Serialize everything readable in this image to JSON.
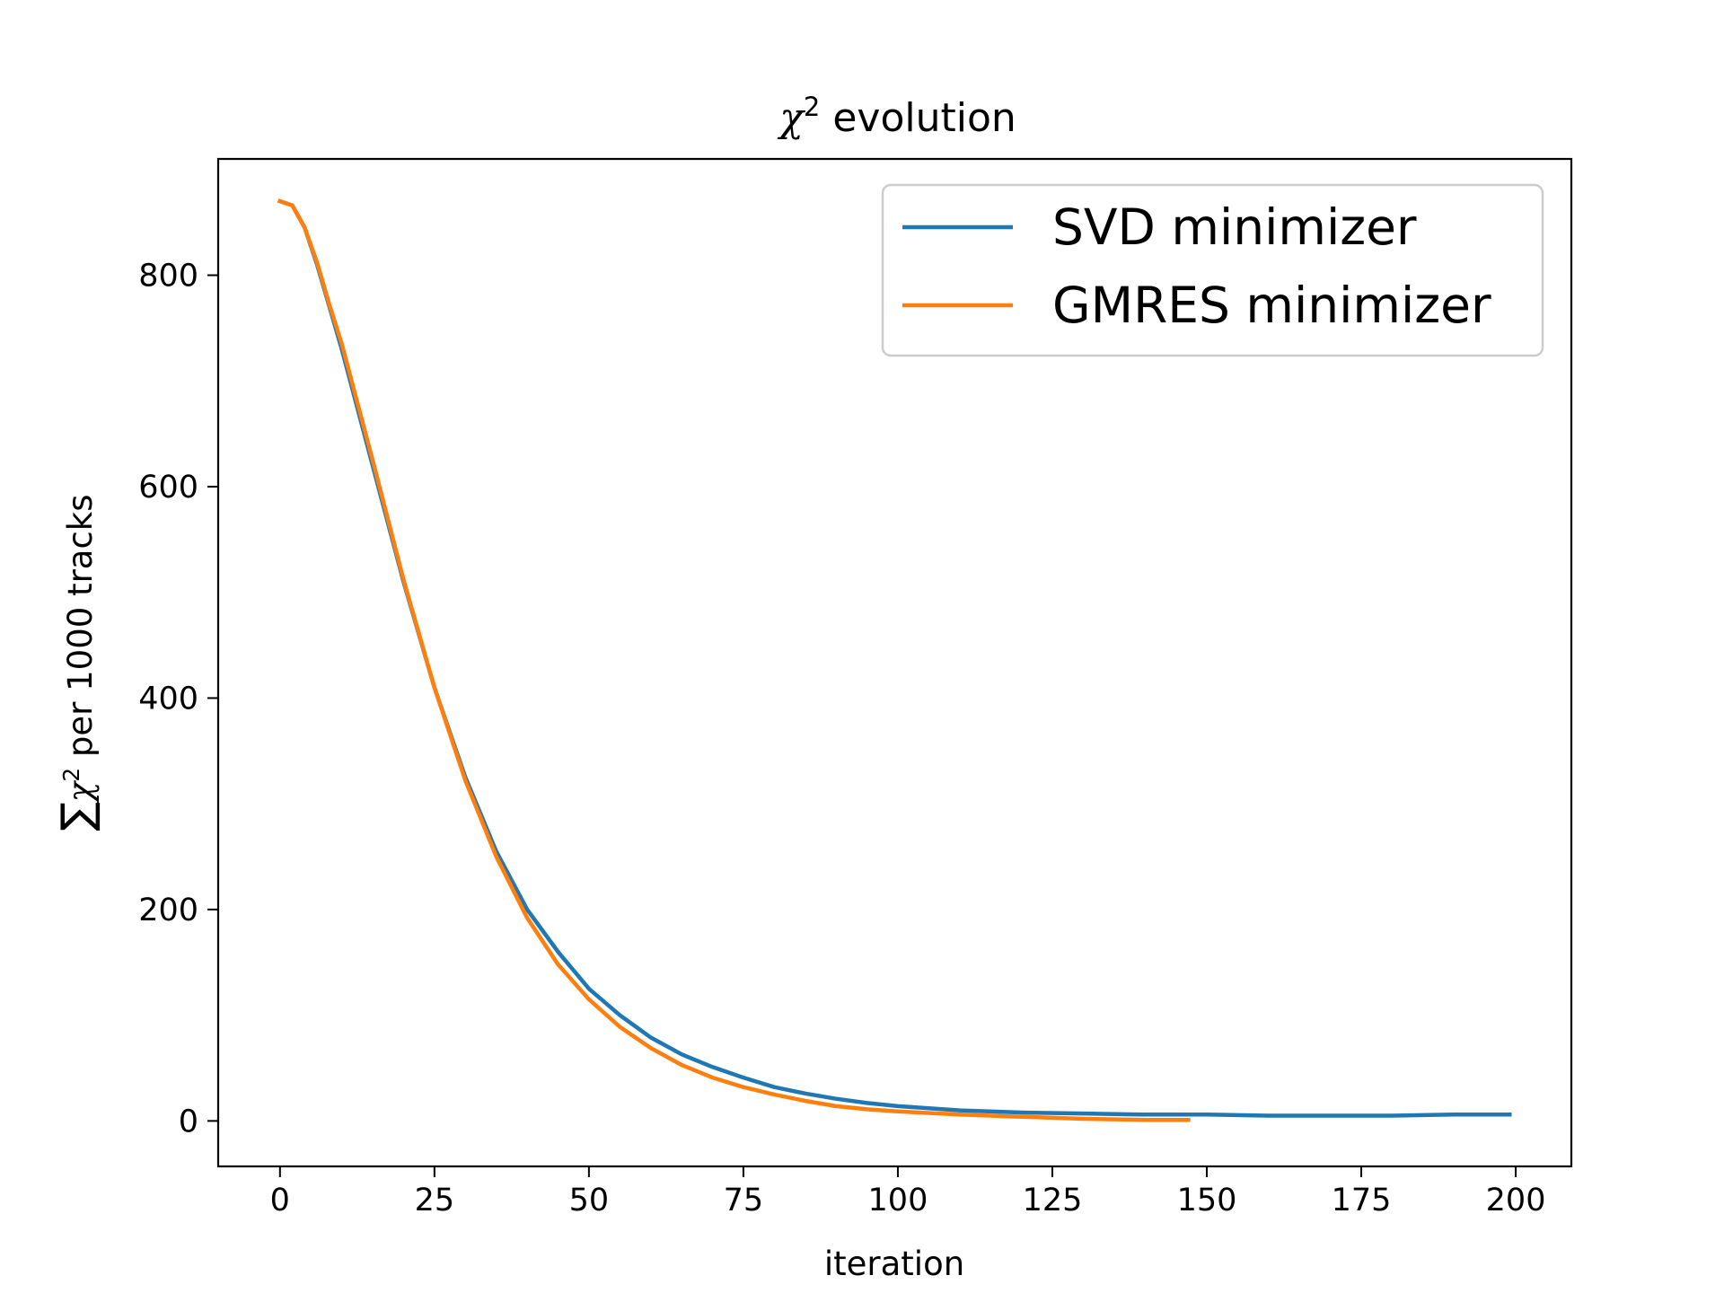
{
  "chart_data": {
    "type": "line",
    "title_prefix": "χ",
    "title_exponent": "2",
    "title_suffix": " evolution",
    "xlabel": "iteration",
    "ylabel_sum": "∑",
    "ylabel_chi": "χ",
    "ylabel_exponent": "2",
    "ylabel_suffix": " per 1000 tracks",
    "xlim": [
      -10,
      209
    ],
    "ylim": [
      -43,
      910
    ],
    "xticks": [
      0,
      25,
      50,
      75,
      100,
      125,
      150,
      175,
      200
    ],
    "yticks": [
      0,
      200,
      400,
      600,
      800
    ],
    "grid": false,
    "legend_position": "top-right",
    "series": [
      {
        "name": "SVD minimizer",
        "color": "#1f77b4",
        "x": [
          0,
          2,
          4,
          6,
          8,
          10,
          15,
          20,
          25,
          30,
          35,
          40,
          45,
          50,
          55,
          60,
          65,
          70,
          75,
          80,
          85,
          90,
          95,
          100,
          110,
          120,
          130,
          140,
          150,
          160,
          170,
          180,
          190,
          199
        ],
        "y": [
          870,
          866,
          845,
          810,
          770,
          730,
          620,
          510,
          410,
          325,
          255,
          200,
          160,
          125,
          100,
          79,
          63,
          51,
          41,
          32,
          26,
          21,
          17,
          14,
          10,
          8,
          7,
          6,
          6,
          5,
          5,
          5,
          6,
          6
        ]
      },
      {
        "name": "GMRES minimizer",
        "color": "#ff7f0e",
        "x": [
          0,
          2,
          4,
          6,
          8,
          10,
          15,
          20,
          25,
          30,
          35,
          40,
          45,
          50,
          55,
          60,
          65,
          70,
          75,
          80,
          85,
          90,
          95,
          100,
          110,
          120,
          130,
          140,
          147
        ],
        "y": [
          870,
          866,
          845,
          812,
          772,
          735,
          625,
          512,
          410,
          322,
          250,
          192,
          148,
          115,
          89,
          69,
          53,
          41,
          32,
          25,
          19,
          14,
          11,
          9,
          6,
          4,
          2,
          1,
          1
        ]
      }
    ]
  }
}
